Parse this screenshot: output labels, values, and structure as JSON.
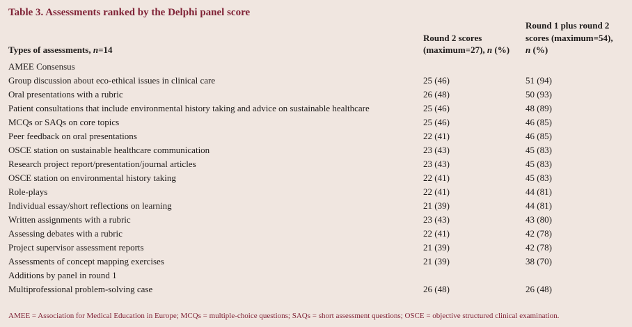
{
  "title": "Table 3. Assessments ranked by the Delphi panel score",
  "colors": {
    "background": "#f0e6e0",
    "accent": "#7f2236",
    "text": "#1e1b1a"
  },
  "table": {
    "columns": [
      {
        "id": "types",
        "lines": [
          "Types of assessments, *n*=14"
        ]
      },
      {
        "id": "round2",
        "lines": [
          "Round 2 scores",
          "(maximum=27), *n* (%)"
        ]
      },
      {
        "id": "combined",
        "lines": [
          "Round 1 plus round 2",
          "scores (maximum=54),",
          "*n* (%)"
        ]
      }
    ],
    "rows": [
      {
        "type": "section",
        "label": "AMEE Consensus"
      },
      {
        "type": "data",
        "label": "Group discussion about eco-ethical issues in clinical care",
        "round2": "25 (46)",
        "combined": "51 (94)"
      },
      {
        "type": "data",
        "label": "Oral presentations with a rubric",
        "round2": "26 (48)",
        "combined": "50 (93)"
      },
      {
        "type": "data",
        "label": "Patient consultations that include environmental history taking and advice on sustainable healthcare",
        "round2": "25 (46)",
        "combined": "48 (89)"
      },
      {
        "type": "data",
        "label": "MCQs or SAQs on core topics",
        "round2": "25 (46)",
        "combined": "46 (85)"
      },
      {
        "type": "data",
        "label": "Peer feedback on oral presentations",
        "round2": "22 (41)",
        "combined": "46 (85)"
      },
      {
        "type": "data",
        "label": "OSCE station on sustainable healthcare communication",
        "round2": "23 (43)",
        "combined": "45 (83)"
      },
      {
        "type": "data",
        "label": "Research project report/presentation/journal articles",
        "round2": "23 (43)",
        "combined": "45 (83)"
      },
      {
        "type": "data",
        "label": "OSCE station on environmental history taking",
        "round2": "22 (41)",
        "combined": "45 (83)"
      },
      {
        "type": "data",
        "label": "Role-plays",
        "round2": "22 (41)",
        "combined": "44 (81)"
      },
      {
        "type": "data",
        "label": "Individual essay/short reflections on learning",
        "round2": "21 (39)",
        "combined": "44 (81)"
      },
      {
        "type": "data",
        "label": "Written assignments with a rubric",
        "round2": "23 (43)",
        "combined": "43 (80)"
      },
      {
        "type": "data",
        "label": "Assessing debates with a rubric",
        "round2": "22 (41)",
        "combined": "42 (78)"
      },
      {
        "type": "data",
        "label": "Project supervisor assessment reports",
        "round2": "21 (39)",
        "combined": "42 (78)"
      },
      {
        "type": "data",
        "label": "Assessments of concept mapping exercises",
        "round2": "21 (39)",
        "combined": "38 (70)"
      },
      {
        "type": "section",
        "label": "Additions by panel in round 1"
      },
      {
        "type": "data",
        "label": "Multiprofessional problem-solving case",
        "round2": "26 (48)",
        "combined": "26 (48)"
      }
    ]
  },
  "footnote": "AMEE = Association for Medical Education in Europe; MCQs = multiple-choice questions; SAQs = short assessment questions; OSCE = objective structured clinical examination."
}
